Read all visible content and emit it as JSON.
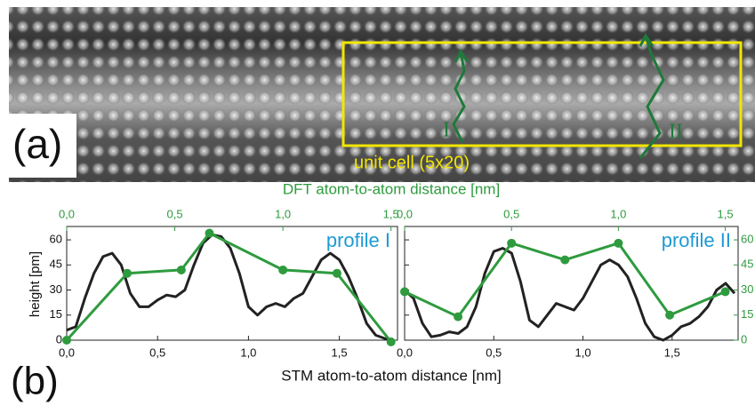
{
  "panel_a": {
    "label": "(a)",
    "annotation": "unit cell (5x20)",
    "profile_1_marker": "I",
    "profile_2_marker": "II"
  },
  "panel_b": {
    "label": "(b)",
    "x_label": "STM atom-to-atom distance [nm]",
    "x2_label": "DFT atom-to-atom distance [nm]",
    "y_label": "height [pm]"
  },
  "chart_data": [
    {
      "type": "line",
      "title": "profile I",
      "xlim": [
        0,
        1.82
      ],
      "xticks": [
        {
          "value": 0,
          "label": "0,0"
        },
        {
          "value": 0.5,
          "label": "0,5"
        },
        {
          "value": 1,
          "label": "1,0"
        },
        {
          "value": 1.5,
          "label": "1,5"
        }
      ],
      "x2lim": [
        0,
        1.53
      ],
      "x2ticks": [
        {
          "value": 0,
          "label": "0,0"
        },
        {
          "value": 0.5,
          "label": "0,5"
        },
        {
          "value": 1,
          "label": "1,0"
        },
        {
          "value": 1.5,
          "label": "1,5"
        }
      ],
      "ylim": [
        0,
        68
      ],
      "yticks": [
        0,
        15,
        30,
        45,
        60
      ],
      "series": [
        {
          "color": "#222222",
          "x": [
            0,
            0.05,
            0.1,
            0.15,
            0.2,
            0.25,
            0.3,
            0.35,
            0.4,
            0.45,
            0.5,
            0.55,
            0.6,
            0.65,
            0.7,
            0.75,
            0.8,
            0.85,
            0.9,
            0.95,
            1,
            1.05,
            1.1,
            1.15,
            1.2,
            1.25,
            1.3,
            1.35,
            1.4,
            1.45,
            1.5,
            1.55,
            1.6,
            1.65,
            1.7,
            1.75,
            1.8
          ],
          "values": [
            6,
            8,
            25,
            40,
            50,
            52,
            45,
            28,
            20,
            20,
            24,
            27,
            26,
            30,
            45,
            58,
            63,
            62,
            55,
            40,
            20,
            15,
            20,
            22,
            20,
            25,
            28,
            38,
            48,
            52,
            48,
            38,
            25,
            10,
            3,
            1,
            0
          ]
        },
        {
          "color": "#2e9b3e",
          "axis": "x2",
          "markers": true,
          "x": [
            0,
            0.28,
            0.53,
            0.66,
            1.0,
            1.25,
            1.5
          ],
          "values": [
            0,
            40,
            42,
            64,
            42,
            40,
            -1
          ]
        }
      ]
    },
    {
      "type": "line",
      "title": "profile II",
      "xlim": [
        0,
        1.87
      ],
      "xticks": [
        {
          "value": 0,
          "label": "0,0"
        },
        {
          "value": 0.5,
          "label": "0,5"
        },
        {
          "value": 1,
          "label": "1,0"
        },
        {
          "value": 1.5,
          "label": "1,5"
        }
      ],
      "x2lim": [
        0,
        1.56
      ],
      "x2ticks": [
        {
          "value": 0,
          "label": "0,0"
        },
        {
          "value": 0.5,
          "label": "0,5"
        },
        {
          "value": 1,
          "label": "1,0"
        },
        {
          "value": 1.5,
          "label": "1,5"
        }
      ],
      "y2lim": [
        0,
        68
      ],
      "y2ticks": [
        0,
        15,
        30,
        45,
        60
      ],
      "series": [
        {
          "color": "#222222",
          "axis": "y2",
          "x": [
            0,
            0.05,
            0.1,
            0.15,
            0.2,
            0.25,
            0.3,
            0.35,
            0.4,
            0.45,
            0.5,
            0.55,
            0.6,
            0.65,
            0.7,
            0.75,
            0.8,
            0.85,
            0.9,
            0.95,
            1,
            1.05,
            1.1,
            1.15,
            1.2,
            1.25,
            1.3,
            1.35,
            1.4,
            1.45,
            1.5,
            1.55,
            1.6,
            1.65,
            1.7,
            1.75,
            1.8,
            1.85
          ],
          "values": [
            30,
            25,
            10,
            2,
            3,
            5,
            4,
            8,
            20,
            40,
            53,
            55,
            52,
            35,
            12,
            8,
            15,
            22,
            20,
            18,
            25,
            35,
            45,
            48,
            45,
            38,
            25,
            10,
            2,
            0,
            3,
            8,
            10,
            14,
            20,
            30,
            34,
            28
          ]
        },
        {
          "color": "#2e9b3e",
          "axis": "x2",
          "markers": true,
          "x": [
            0,
            0.25,
            0.5,
            0.75,
            1.0,
            1.24,
            1.5
          ],
          "values": [
            29,
            14,
            58,
            48,
            58,
            15,
            29
          ]
        }
      ]
    }
  ]
}
